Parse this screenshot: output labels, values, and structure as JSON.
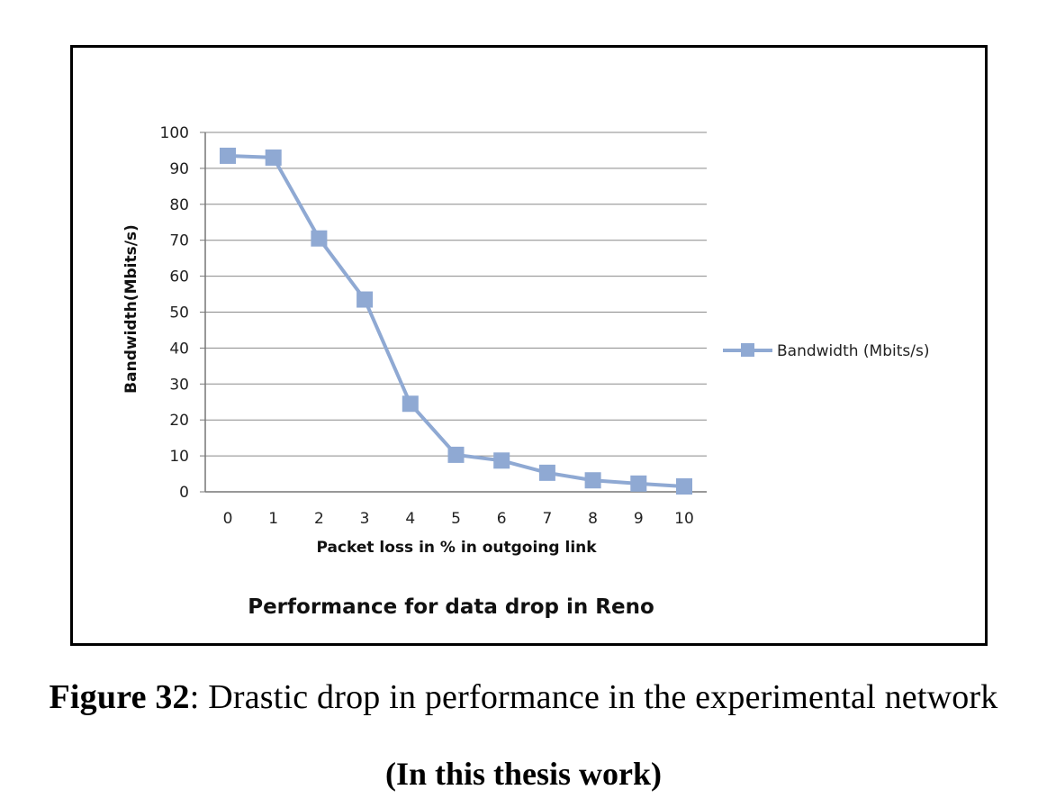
{
  "chart_data": {
    "type": "line",
    "title": "Performance for data drop in Reno",
    "xlabel": "Packet loss in % in outgoing link",
    "ylabel": "Bandwidth(Mbits/s)",
    "categories": [
      "0",
      "1",
      "2",
      "3",
      "4",
      "5",
      "6",
      "7",
      "8",
      "9",
      "10"
    ],
    "x": [
      0,
      1,
      2,
      3,
      4,
      5,
      6,
      7,
      8,
      9,
      10
    ],
    "series": [
      {
        "name": "Bandwidth (Mbits/s)",
        "values": [
          93.5,
          93,
          70.5,
          53.5,
          24.5,
          10.3,
          8.7,
          5.3,
          3.2,
          2.3,
          1.5
        ],
        "color": "#8fa9d3"
      }
    ],
    "ylim": [
      0,
      100
    ],
    "yticks": [
      0,
      10,
      20,
      30,
      40,
      50,
      60,
      70,
      80,
      90,
      100
    ],
    "grid": true,
    "legend": "right"
  },
  "caption": {
    "label": "Figure 32",
    "text": ": Drastic drop in performance  in the experimental  network",
    "sub": "(In this thesis work)"
  }
}
